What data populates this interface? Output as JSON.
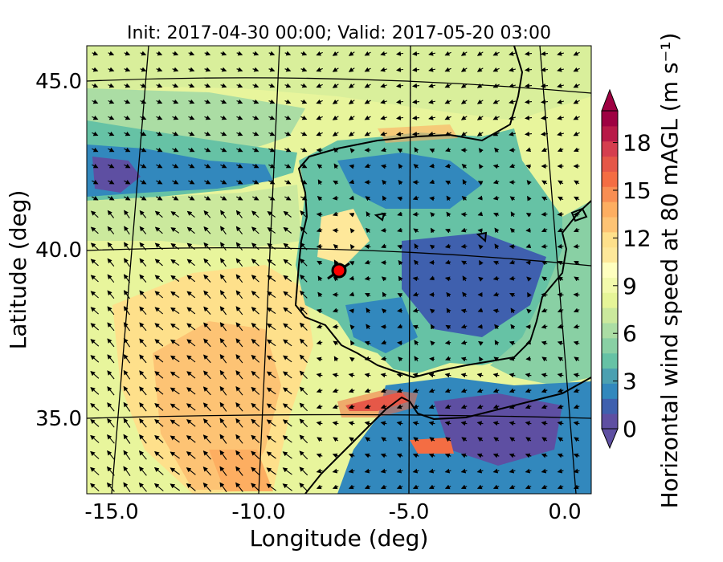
{
  "title": "Init: 2017-04-30 00:00; Valid: 2017-05-20 03:00",
  "axes": {
    "xlabel": "Longitude (deg)",
    "ylabel": "Latitude (deg)",
    "xticks": [
      "-15.0",
      "-10.0",
      "-5.0",
      "0.0"
    ],
    "yticks": [
      "45.0",
      "40.0",
      "35.0"
    ]
  },
  "colorbar": {
    "label": "Horizontal wind speed at 80 mAGL (m s⁻¹)",
    "ticks": [
      "0",
      "3",
      "6",
      "9",
      "12",
      "15",
      "18"
    ],
    "range": [
      0,
      20
    ],
    "extend": "both",
    "colormap": "Spectral_r",
    "colors": [
      "#5e4fa2",
      "#3f60ae",
      "#3288bd",
      "#4ba0b1",
      "#66c2a5",
      "#89d0a4",
      "#abdda4",
      "#cbe99d",
      "#e6f598",
      "#f3faac",
      "#ffffbf",
      "#fee89a",
      "#fee08b",
      "#fdc374",
      "#fdae61",
      "#f88e53",
      "#f46d43",
      "#e55748",
      "#d53e4f",
      "#b81a48",
      "#9e0142"
    ]
  },
  "map": {
    "projection": "lambert-conformal",
    "lon_range": [
      -16,
      0.2
    ],
    "lat_range": [
      32.5,
      46
    ],
    "meridians": [
      -15,
      -10,
      -5,
      0
    ],
    "parallels": [
      35,
      40,
      45
    ],
    "marker": {
      "name": "site-marker",
      "lon": -7.7,
      "lat": 39.3,
      "color": "#ff0000"
    },
    "wind_vectors": true,
    "coastlines": true
  }
}
